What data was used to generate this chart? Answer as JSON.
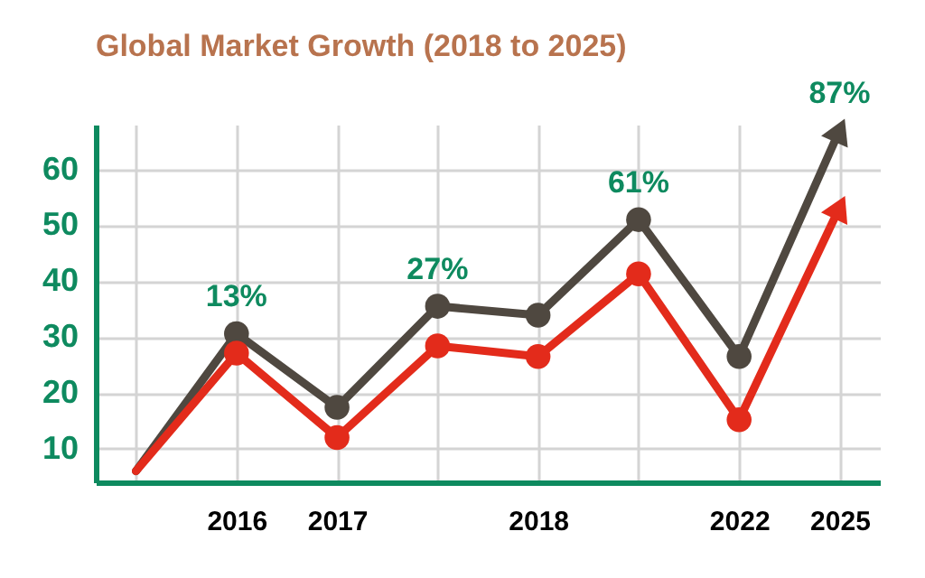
{
  "chart_data": {
    "type": "line",
    "title": "Global Market Growth (2018 to 2025)",
    "categories": [
      null,
      "2016",
      "2017",
      null,
      "2018",
      null,
      "2022",
      "2025"
    ],
    "ylim": [
      4,
      68
    ],
    "yticks": [
      10,
      20,
      30,
      40,
      50,
      60
    ],
    "grid": true,
    "marker": "circle",
    "line_style": "solid",
    "series": [
      {
        "color": "#4f4840",
        "values": [
          6,
          30.6,
          17.4,
          35.5,
          33.9,
          51,
          26.5,
          67
        ]
      },
      {
        "color": "#e32b1b",
        "values": [
          6,
          27.1,
          12,
          28.4,
          26.5,
          41.3,
          15.2,
          53.2
        ]
      }
    ],
    "annotations": [
      {
        "text": "13%",
        "x": "2016",
        "y": 30.6
      },
      {
        "text": "27%",
        "y": 35.5
      },
      {
        "text": "61%",
        "y": 51
      },
      {
        "text": "87%",
        "x": "2025",
        "y": 67
      }
    ]
  }
}
